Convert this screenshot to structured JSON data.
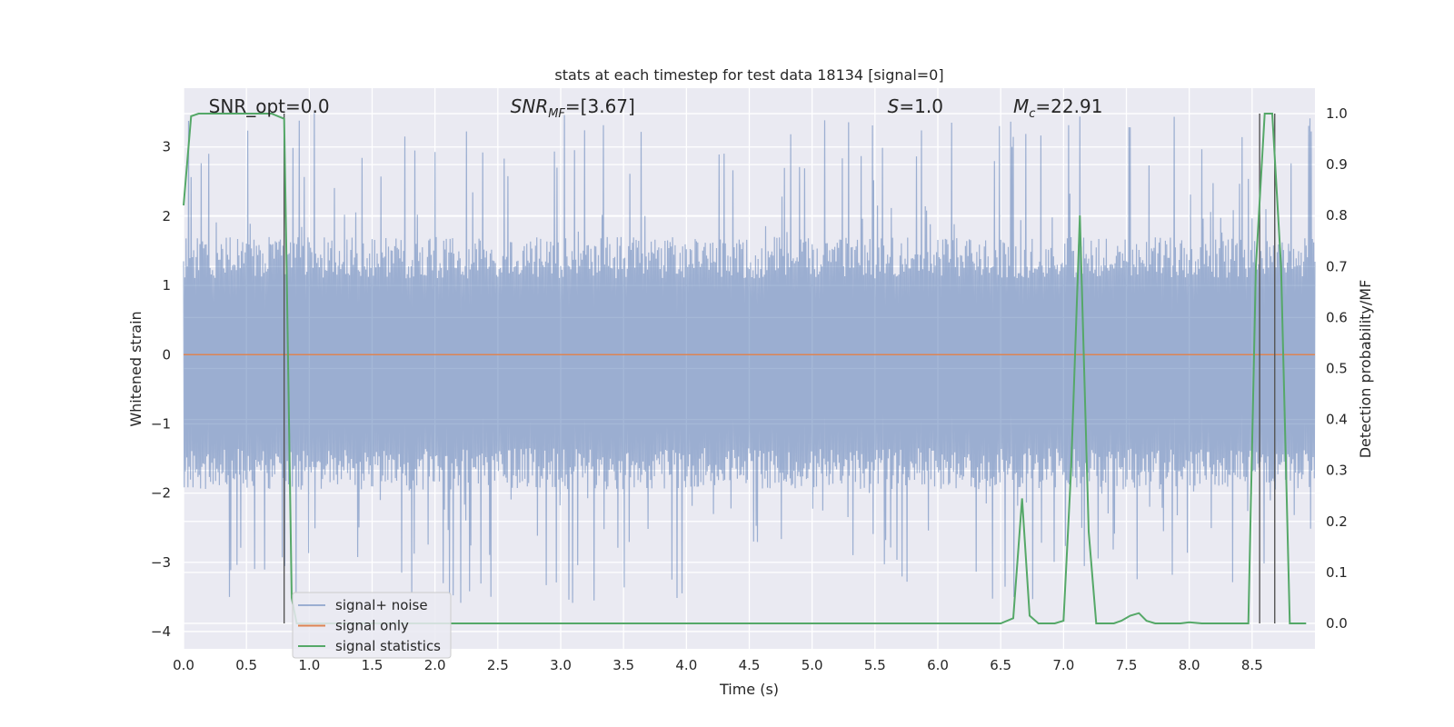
{
  "chart_data": {
    "type": "line",
    "title": "stats at each timestep for test data 18134 [signal=0]",
    "xlabel": "Time (s)",
    "ylabel_left": "Whitened strain",
    "ylabel_right": "Detection probability/MF",
    "xlim": [
      0.0,
      9.0
    ],
    "ylim_left": [
      -4.25,
      3.85
    ],
    "ylim_right": [
      -0.05,
      1.05
    ],
    "grid": true,
    "legend_position": "lower-left",
    "x_ticks": [
      "0.0",
      "0.5",
      "1.0",
      "1.5",
      "2.0",
      "2.5",
      "3.0",
      "3.5",
      "4.0",
      "4.5",
      "5.0",
      "5.5",
      "6.0",
      "6.5",
      "7.0",
      "7.5",
      "8.0",
      "8.5"
    ],
    "x_tick_values": [
      0,
      0.5,
      1,
      1.5,
      2,
      2.5,
      3,
      3.5,
      4,
      4.5,
      5,
      5.5,
      6,
      6.5,
      7,
      7.5,
      8,
      8.5
    ],
    "y_left_ticks": [
      "−4",
      "−3",
      "−2",
      "−1",
      "0",
      "1",
      "2",
      "3"
    ],
    "y_left_tick_values": [
      -4,
      -3,
      -2,
      -1,
      0,
      1,
      2,
      3
    ],
    "y_right_ticks": [
      "0.0",
      "0.1",
      "0.2",
      "0.3",
      "0.4",
      "0.5",
      "0.6",
      "0.7",
      "0.8",
      "0.9",
      "1.0"
    ],
    "y_right_tick_values": [
      0,
      0.1,
      0.2,
      0.3,
      0.4,
      0.5,
      0.6,
      0.7,
      0.8,
      0.9,
      1.0
    ],
    "annotations": [
      {
        "text": "SNR_opt=0.0",
        "x": 0.2
      },
      {
        "text": "SNR",
        "sub": "MF",
        "rest": "=[3.67]",
        "x": 2.6,
        "italic": true
      },
      {
        "text": "S",
        "rest": "=1.0",
        "x": 5.6,
        "italic": true
      },
      {
        "text": "M",
        "sub": "c",
        "rest": "=22.91",
        "x": 6.6,
        "italic": true
      }
    ],
    "series": [
      {
        "name": "signal+ noise",
        "axis": "left",
        "color": "#4c72b0",
        "band": {
          "lower": -1.75,
          "upper": 1.5,
          "peak_high": 3.5,
          "peak_low": -3.6,
          "n": 1800
        }
      },
      {
        "name": "signal only",
        "axis": "left",
        "color": "#dd8452",
        "x": [
          0.0,
          9.0
        ],
        "values": [
          0.0,
          0.0
        ]
      },
      {
        "name": "signal statistics",
        "axis": "right",
        "color": "#55a868",
        "x": [
          0.0,
          0.06,
          0.12,
          0.2,
          0.3,
          0.5,
          0.7,
          0.8,
          0.82,
          0.86,
          0.9,
          1.0,
          2.0,
          3.0,
          4.0,
          5.0,
          6.0,
          6.5,
          6.6,
          6.67,
          6.73,
          6.8,
          6.86,
          6.93,
          7.0,
          7.06,
          7.13,
          7.2,
          7.26,
          7.33,
          7.4,
          7.46,
          7.53,
          7.6,
          7.66,
          7.73,
          7.8,
          7.86,
          7.93,
          8.0,
          8.1,
          8.2,
          8.3,
          8.4,
          8.47,
          8.53,
          8.6,
          8.66,
          8.73,
          8.8,
          8.86,
          8.93
        ],
        "values": [
          0.82,
          0.995,
          1.0,
          1.0,
          1.0,
          1.0,
          1.0,
          0.99,
          0.7,
          0.05,
          0.0,
          0.0,
          0.0,
          0.0,
          0.0,
          0.0,
          0.0,
          0.0,
          0.01,
          0.245,
          0.015,
          0.0,
          0.0,
          0.0,
          0.005,
          0.3,
          0.8,
          0.18,
          0.0,
          0.0,
          0.0,
          0.005,
          0.015,
          0.02,
          0.005,
          0.0,
          0.0,
          0.0,
          0.0,
          0.002,
          0.0,
          0.0,
          0.0,
          0.0,
          0.0,
          0.7,
          1.0,
          1.0,
          0.7,
          0.0,
          0.0,
          0.0
        ]
      }
    ],
    "vlines": [
      0.8,
      8.56,
      8.68
    ]
  }
}
